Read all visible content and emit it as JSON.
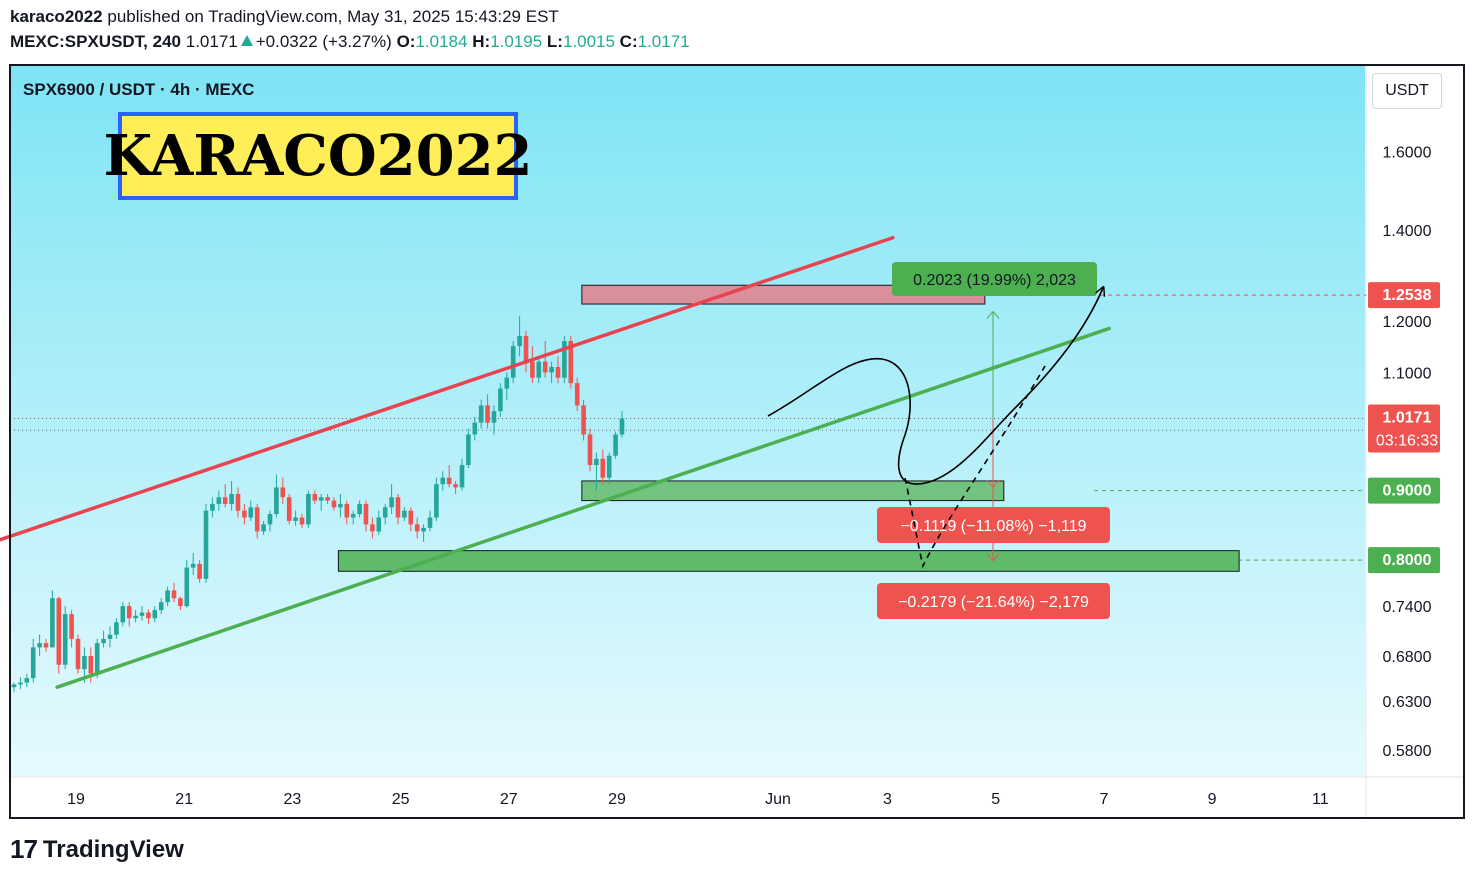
{
  "header": {
    "author": "karaco2022",
    "published": "published on TradingView.com, May 31, 2025 15:43:29 EST",
    "symbol": "MEXC:SPXUSDT, 240",
    "last": "1.0171",
    "change": "+0.0322 (+3.27%)",
    "o_label": "O:",
    "o": "1.0184",
    "h_label": "H:",
    "h": "1.0195",
    "l_label": "L:",
    "l": "1.0015",
    "c_label": "C:",
    "c": "1.0171"
  },
  "pair_title": "SPX6900 / USDT · 4h · MEXC",
  "banner": "KARACO2022",
  "currency_button": "USDT",
  "footer": {
    "logo": "17",
    "brand": "TradingView"
  },
  "colors": {
    "bg_top": "#7ee4f5",
    "bg_bottom": "#e6fafe",
    "up": "#26a69a",
    "down": "#ef5350",
    "red_line": "#e8434f",
    "green_line": "#4caf50",
    "zone_red": "#e57f8a",
    "zone_green": "#66bb6a"
  },
  "chart_data": {
    "type": "candlestick",
    "interval": "4h",
    "y_scale": "log",
    "ylim": [
      0.55,
      1.75
    ],
    "y_ticks": [
      {
        "v": 1.6,
        "label": "1.6000"
      },
      {
        "v": 1.4,
        "label": "1.4000"
      },
      {
        "v": 1.2,
        "label": "1.2000"
      },
      {
        "v": 1.1,
        "label": "1.1000"
      },
      {
        "v": 0.74,
        "label": "0.7400"
      },
      {
        "v": 0.68,
        "label": "0.6800"
      },
      {
        "v": 0.63,
        "label": "0.6300"
      },
      {
        "v": 0.58,
        "label": "0.5800"
      }
    ],
    "x_ticks": [
      "19",
      "21",
      "23",
      "25",
      "27",
      "29",
      "Jun",
      "3",
      "5",
      "7",
      "9",
      "11"
    ],
    "price_labels": [
      {
        "v": 1.2538,
        "label": "1.2538",
        "color": "#ef5350"
      },
      {
        "v": 1.0171,
        "label": "1.0171",
        "sub": "03:16:33",
        "color": "#ef5350"
      },
      {
        "v": 0.9,
        "label": "0.9000",
        "color": "#4caf50"
      },
      {
        "v": 0.8,
        "label": "0.8000",
        "color": "#4caf50"
      }
    ],
    "candles": [
      [
        0.645,
        0.65,
        0.64,
        0.648
      ],
      [
        0.648,
        0.656,
        0.643,
        0.65
      ],
      [
        0.65,
        0.66,
        0.645,
        0.655
      ],
      [
        0.655,
        0.7,
        0.65,
        0.69
      ],
      [
        0.69,
        0.705,
        0.68,
        0.695
      ],
      [
        0.695,
        0.7,
        0.685,
        0.69
      ],
      [
        0.69,
        0.76,
        0.69,
        0.75
      ],
      [
        0.75,
        0.752,
        0.66,
        0.67
      ],
      [
        0.67,
        0.74,
        0.665,
        0.73
      ],
      [
        0.73,
        0.735,
        0.69,
        0.7
      ],
      [
        0.7,
        0.705,
        0.66,
        0.665
      ],
      [
        0.665,
        0.69,
        0.65,
        0.68
      ],
      [
        0.68,
        0.69,
        0.65,
        0.66
      ],
      [
        0.66,
        0.7,
        0.655,
        0.695
      ],
      [
        0.695,
        0.71,
        0.69,
        0.7
      ],
      [
        0.7,
        0.715,
        0.69,
        0.705
      ],
      [
        0.705,
        0.725,
        0.7,
        0.72
      ],
      [
        0.72,
        0.745,
        0.715,
        0.74
      ],
      [
        0.74,
        0.745,
        0.715,
        0.725
      ],
      [
        0.725,
        0.735,
        0.72,
        0.728
      ],
      [
        0.728,
        0.74,
        0.722,
        0.732
      ],
      [
        0.732,
        0.736,
        0.718,
        0.725
      ],
      [
        0.725,
        0.74,
        0.72,
        0.735
      ],
      [
        0.735,
        0.75,
        0.73,
        0.745
      ],
      [
        0.745,
        0.765,
        0.74,
        0.76
      ],
      [
        0.76,
        0.77,
        0.745,
        0.75
      ],
      [
        0.75,
        0.752,
        0.735,
        0.74
      ],
      [
        0.74,
        0.8,
        0.738,
        0.79
      ],
      [
        0.79,
        0.81,
        0.78,
        0.795
      ],
      [
        0.795,
        0.8,
        0.77,
        0.775
      ],
      [
        0.775,
        0.88,
        0.77,
        0.87
      ],
      [
        0.87,
        0.89,
        0.86,
        0.88
      ],
      [
        0.88,
        0.9,
        0.87,
        0.89
      ],
      [
        0.89,
        0.91,
        0.875,
        0.88
      ],
      [
        0.88,
        0.915,
        0.87,
        0.895
      ],
      [
        0.895,
        0.905,
        0.86,
        0.87
      ],
      [
        0.87,
        0.88,
        0.85,
        0.86
      ],
      [
        0.86,
        0.885,
        0.855,
        0.875
      ],
      [
        0.875,
        0.88,
        0.83,
        0.84
      ],
      [
        0.84,
        0.855,
        0.835,
        0.85
      ],
      [
        0.85,
        0.87,
        0.84,
        0.865
      ],
      [
        0.865,
        0.925,
        0.86,
        0.905
      ],
      [
        0.905,
        0.92,
        0.88,
        0.89
      ],
      [
        0.89,
        0.895,
        0.85,
        0.855
      ],
      [
        0.855,
        0.87,
        0.848,
        0.86
      ],
      [
        0.86,
        0.865,
        0.845,
        0.85
      ],
      [
        0.85,
        0.9,
        0.845,
        0.895
      ],
      [
        0.895,
        0.9,
        0.88,
        0.885
      ],
      [
        0.885,
        0.895,
        0.87,
        0.89
      ],
      [
        0.89,
        0.895,
        0.88,
        0.885
      ],
      [
        0.885,
        0.89,
        0.87,
        0.875
      ],
      [
        0.875,
        0.895,
        0.86,
        0.88
      ],
      [
        0.88,
        0.885,
        0.85,
        0.86
      ],
      [
        0.86,
        0.87,
        0.85,
        0.865
      ],
      [
        0.865,
        0.885,
        0.86,
        0.88
      ],
      [
        0.88,
        0.885,
        0.84,
        0.85
      ],
      [
        0.85,
        0.86,
        0.83,
        0.84
      ],
      [
        0.84,
        0.87,
        0.835,
        0.86
      ],
      [
        0.86,
        0.88,
        0.85,
        0.875
      ],
      [
        0.875,
        0.91,
        0.865,
        0.89
      ],
      [
        0.89,
        0.895,
        0.85,
        0.86
      ],
      [
        0.86,
        0.875,
        0.855,
        0.87
      ],
      [
        0.87,
        0.875,
        0.84,
        0.85
      ],
      [
        0.85,
        0.86,
        0.83,
        0.84
      ],
      [
        0.84,
        0.85,
        0.825,
        0.845
      ],
      [
        0.845,
        0.87,
        0.84,
        0.86
      ],
      [
        0.86,
        0.92,
        0.855,
        0.91
      ],
      [
        0.91,
        0.93,
        0.9,
        0.92
      ],
      [
        0.92,
        0.94,
        0.905,
        0.91
      ],
      [
        0.91,
        0.915,
        0.895,
        0.905
      ],
      [
        0.905,
        0.95,
        0.9,
        0.94
      ],
      [
        0.94,
        1.0,
        0.935,
        0.99
      ],
      [
        0.99,
        1.02,
        0.98,
        1.01
      ],
      [
        1.01,
        1.05,
        1.0,
        1.04
      ],
      [
        1.04,
        1.06,
        1.0,
        1.01
      ],
      [
        1.01,
        1.04,
        0.99,
        1.03
      ],
      [
        1.03,
        1.08,
        1.02,
        1.07
      ],
      [
        1.07,
        1.1,
        1.05,
        1.09
      ],
      [
        1.09,
        1.16,
        1.08,
        1.15
      ],
      [
        1.15,
        1.21,
        1.13,
        1.17
      ],
      [
        1.17,
        1.18,
        1.1,
        1.12
      ],
      [
        1.12,
        1.15,
        1.08,
        1.09
      ],
      [
        1.09,
        1.13,
        1.08,
        1.12
      ],
      [
        1.12,
        1.16,
        1.09,
        1.1
      ],
      [
        1.1,
        1.12,
        1.08,
        1.11
      ],
      [
        1.11,
        1.13,
        1.08,
        1.09
      ],
      [
        1.09,
        1.17,
        1.08,
        1.16
      ],
      [
        1.16,
        1.17,
        1.07,
        1.08
      ],
      [
        1.08,
        1.09,
        1.03,
        1.04
      ],
      [
        1.04,
        1.05,
        0.98,
        0.99
      ],
      [
        0.99,
        1.0,
        0.93,
        0.94
      ],
      [
        0.94,
        0.96,
        0.9,
        0.95
      ],
      [
        0.95,
        0.965,
        0.91,
        0.92
      ],
      [
        0.92,
        0.96,
        0.91,
        0.955
      ],
      [
        0.955,
        0.995,
        0.95,
        0.99
      ],
      [
        0.99,
        1.03,
        0.985,
        1.017
      ]
    ],
    "trendlines": [
      {
        "name": "resistance",
        "from": {
          "day": 17.0,
          "price": 0.813
        },
        "to": {
          "day": 34.1,
          "price": 1.382
        },
        "color": "#e8434f"
      },
      {
        "name": "support",
        "from": {
          "day": 18.65,
          "price": 0.645
        },
        "to": {
          "day": 38.1,
          "price": 1.185
        },
        "color": "#4caf50"
      }
    ],
    "zones": [
      {
        "name": "resistance-zone",
        "from_day": 28.35,
        "to_day": 35.8,
        "top": 1.275,
        "bottom": 1.235,
        "color": "#e57f8a"
      },
      {
        "name": "support-zone-1",
        "from_day": 28.35,
        "to_day": 36.15,
        "top": 0.915,
        "bottom": 0.885,
        "color": "#66bb6a"
      },
      {
        "name": "support-zone-2",
        "from_day": 23.85,
        "to_day": 40.5,
        "top": 0.813,
        "bottom": 0.785,
        "color": "#4caf50"
      }
    ],
    "measures": [
      {
        "text": "0.2023 (19.99%) 2,023",
        "color": "#4caf50"
      },
      {
        "text": "−0.1119 (−11.08%) −1,119",
        "color": "#ef5350"
      },
      {
        "text": "−0.2179 (−21.64%) −2,179",
        "color": "#ef5350"
      }
    ]
  }
}
